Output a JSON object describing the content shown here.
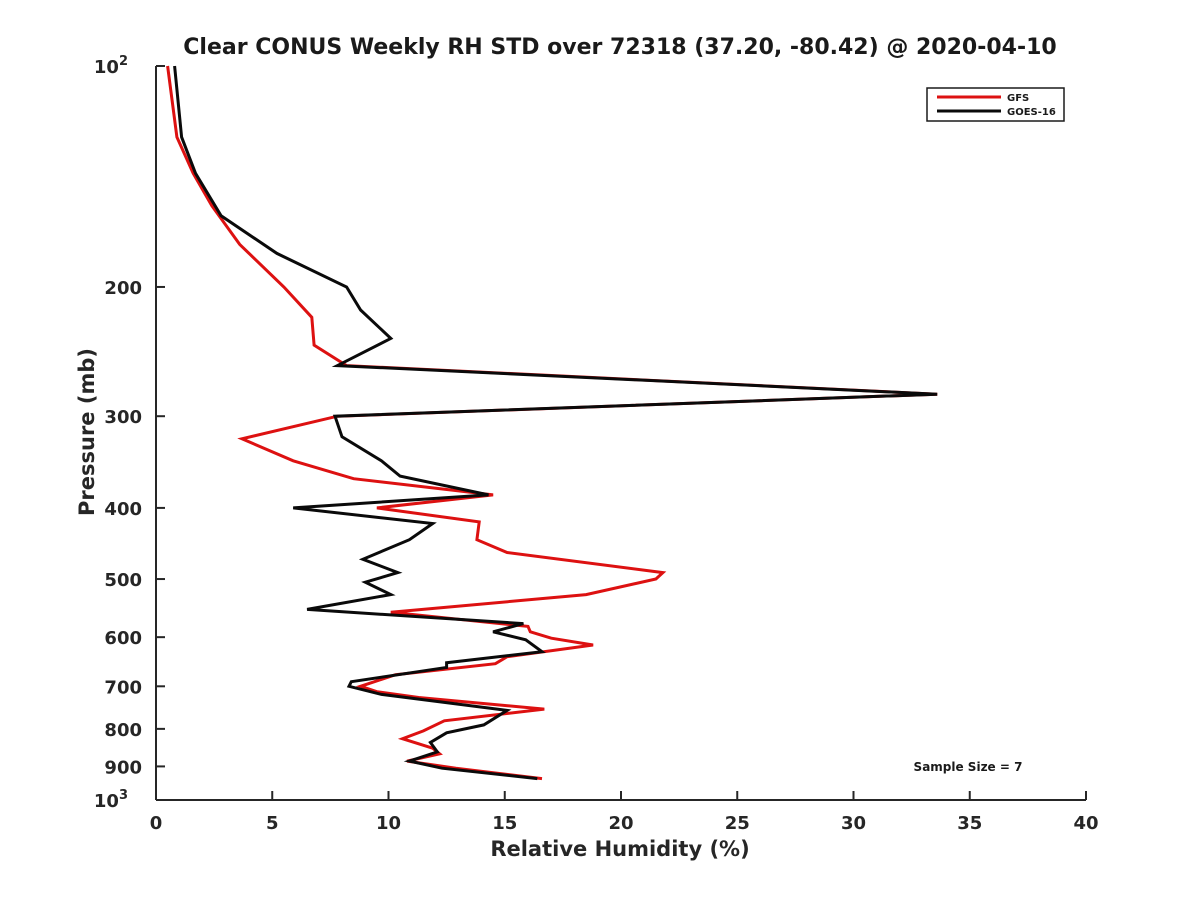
{
  "chart_data": {
    "type": "line",
    "title": "Clear CONUS Weekly RH STD over 72318 (37.20, -80.42) @ 2020-04-10",
    "xlabel": "Relative Humidity (%)",
    "ylabel": "Pressure (mb)",
    "xlim": [
      0,
      40
    ],
    "ylim": [
      100,
      1000
    ],
    "y_scale": "log",
    "y_reversed": true,
    "x_ticks": [
      "0",
      "5",
      "10",
      "15",
      "20",
      "25",
      "30",
      "35",
      "40"
    ],
    "y_ticks": [
      {
        "value": 100,
        "base": "10",
        "exp": "2"
      },
      {
        "value": 200,
        "label": "200"
      },
      {
        "value": 300,
        "label": "300"
      },
      {
        "value": 400,
        "label": "400"
      },
      {
        "value": 500,
        "label": "500"
      },
      {
        "value": 600,
        "label": "600"
      },
      {
        "value": 700,
        "label": "700"
      },
      {
        "value": 800,
        "label": "800"
      },
      {
        "value": 900,
        "label": "900"
      },
      {
        "value": 1000,
        "base": "10",
        "exp": "3"
      }
    ],
    "grid": false,
    "legend_position": "top-right",
    "annotation": "Sample Size = 7",
    "series": [
      {
        "name": "GFS",
        "color": "#dd1111",
        "points": [
          [
            0.5,
            100
          ],
          [
            0.9,
            125
          ],
          [
            1.6,
            140
          ],
          [
            2.4,
            155
          ],
          [
            3.6,
            175
          ],
          [
            5.5,
            200
          ],
          [
            6.7,
            220
          ],
          [
            6.8,
            240
          ],
          [
            8.2,
            256
          ],
          [
            33.6,
            280
          ],
          [
            7.8,
            300
          ],
          [
            3.7,
            322
          ],
          [
            5.9,
            345
          ],
          [
            8.5,
            365
          ],
          [
            14.5,
            384
          ],
          [
            9.5,
            400
          ],
          [
            13.9,
            418
          ],
          [
            13.8,
            442
          ],
          [
            15.1,
            460
          ],
          [
            21.8,
            490
          ],
          [
            21.5,
            500
          ],
          [
            18.5,
            525
          ],
          [
            10.1,
            555
          ],
          [
            16.0,
            580
          ],
          [
            16.1,
            590
          ],
          [
            17.0,
            602
          ],
          [
            18.8,
            615
          ],
          [
            15.1,
            638
          ],
          [
            14.6,
            652
          ],
          [
            10.3,
            675
          ],
          [
            8.8,
            700
          ],
          [
            9.5,
            712
          ],
          [
            11.3,
            725
          ],
          [
            16.7,
            752
          ],
          [
            12.4,
            780
          ],
          [
            11.5,
            805
          ],
          [
            10.6,
            825
          ],
          [
            11.9,
            850
          ],
          [
            12.2,
            865
          ],
          [
            10.8,
            885
          ],
          [
            12.9,
            905
          ],
          [
            16.6,
            935
          ]
        ]
      },
      {
        "name": "GOES-16",
        "color": "#0a0a0a",
        "points": [
          [
            0.8,
            100
          ],
          [
            1.1,
            125
          ],
          [
            1.7,
            140
          ],
          [
            2.8,
            160
          ],
          [
            5.2,
            180
          ],
          [
            8.2,
            200
          ],
          [
            8.8,
            215
          ],
          [
            10.1,
            235
          ],
          [
            7.8,
            256
          ],
          [
            33.6,
            280
          ],
          [
            7.7,
            300
          ],
          [
            8.0,
            320
          ],
          [
            9.7,
            345
          ],
          [
            10.5,
            362
          ],
          [
            14.3,
            384
          ],
          [
            5.9,
            400
          ],
          [
            11.9,
            420
          ],
          [
            10.9,
            442
          ],
          [
            8.9,
            470
          ],
          [
            10.4,
            490
          ],
          [
            9.0,
            505
          ],
          [
            10.1,
            525
          ],
          [
            6.5,
            550
          ],
          [
            15.8,
            575
          ],
          [
            14.5,
            590
          ],
          [
            15.9,
            605
          ],
          [
            16.6,
            628
          ],
          [
            12.5,
            650
          ],
          [
            12.5,
            660
          ],
          [
            8.4,
            690
          ],
          [
            8.3,
            700
          ],
          [
            9.7,
            718
          ],
          [
            15.1,
            755
          ],
          [
            14.1,
            790
          ],
          [
            12.5,
            810
          ],
          [
            11.8,
            835
          ],
          [
            12.1,
            860
          ],
          [
            10.9,
            885
          ],
          [
            12.3,
            905
          ],
          [
            16.4,
            935
          ]
        ]
      }
    ]
  }
}
